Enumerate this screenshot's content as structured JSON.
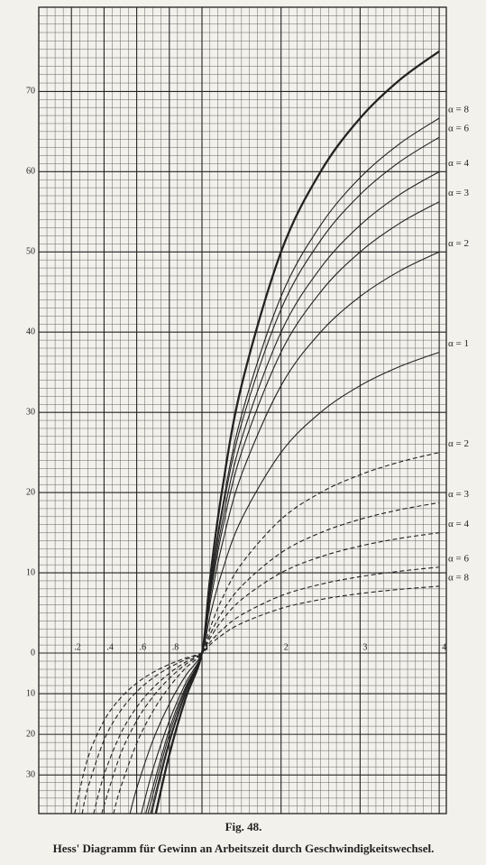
{
  "chart_data": {
    "type": "line",
    "title": "Fig. 48.",
    "subtitle": "Hess' Diagramm für Gewinn an Arbeitszeit durch Geschwindigkeitswechsel.",
    "xlim": [
      0,
      4.09
    ],
    "xticks": [
      {
        "value": 0.2,
        "label": ".2"
      },
      {
        "value": 0.4,
        "label": ".4"
      },
      {
        "value": 0.6,
        "label": ".6"
      },
      {
        "value": 0.8,
        "label": ".8"
      },
      1,
      2,
      3,
      4
    ],
    "ylim": [
      -39.5,
      80.5
    ],
    "yticks": [
      70,
      60,
      50,
      40,
      30,
      20,
      10,
      0,
      {
        "value": -10,
        "label": "10"
      },
      {
        "value": -20,
        "label": "20"
      },
      {
        "value": -30,
        "label": "30"
      }
    ],
    "grid": true,
    "color": "#222222",
    "series": [
      {
        "heavy": true,
        "x": [
          0.717,
          0.8,
          0.9,
          1,
          1.1,
          1.25,
          1.5,
          2,
          2.5,
          3,
          3.5,
          4
        ],
        "values": [
          -39.5,
          -25,
          -11.11,
          0,
          9.09,
          20,
          33.33,
          50,
          60,
          66.67,
          71.43,
          75
        ]
      },
      {
        "name": "α = 8",
        "x": [
          0.692,
          0.8,
          0.9,
          1,
          1.1,
          1.25,
          1.5,
          2,
          2.5,
          3,
          3.5,
          4
        ],
        "values": [
          -39.5,
          -22.22,
          -9.88,
          0,
          8.08,
          17.78,
          29.63,
          44.44,
          53.33,
          59.26,
          63.49,
          66.67
        ]
      },
      {
        "name": "α = 6",
        "x": [
          0.684,
          0.8,
          0.9,
          1,
          1.1,
          1.25,
          1.5,
          2,
          2.5,
          3,
          3.5,
          4
        ],
        "values": [
          -39.5,
          -21.43,
          -9.52,
          0,
          7.79,
          17.14,
          28.57,
          42.86,
          51.43,
          57.14,
          61.22,
          64.29
        ]
      },
      {
        "name": "α = 4",
        "x": [
          0.669,
          0.8,
          0.9,
          1,
          1.1,
          1.25,
          1.5,
          2,
          2.5,
          3,
          3.5,
          4
        ],
        "values": [
          -39.5,
          -20,
          -8.89,
          0,
          7.27,
          16,
          26.67,
          40,
          48,
          53.33,
          57.14,
          60
        ]
      },
      {
        "name": "α = 3",
        "x": [
          0.655,
          0.8,
          0.9,
          1,
          1.1,
          1.25,
          1.5,
          2,
          2.5,
          3,
          3.5,
          4
        ],
        "values": [
          -39.5,
          -18.75,
          -8.33,
          0,
          6.82,
          15,
          25,
          37.5,
          45,
          50,
          53.57,
          56.25
        ]
      },
      {
        "name": "α = 2",
        "x": [
          0.628,
          0.7,
          0.8,
          0.9,
          1,
          1.1,
          1.25,
          1.5,
          2,
          2.5,
          3,
          3.5,
          4
        ],
        "values": [
          -39.5,
          -28.57,
          -16.67,
          -7.41,
          0,
          6.06,
          13.33,
          22.22,
          33.33,
          40,
          44.44,
          47.62,
          50
        ]
      },
      {
        "name": "α = 1",
        "x": [
          0.559,
          0.6,
          0.7,
          0.8,
          0.9,
          1,
          1.1,
          1.25,
          1.5,
          2,
          2.5,
          3,
          3.5,
          4
        ],
        "values": [
          -39.5,
          -33.33,
          -21.43,
          -12.5,
          -5.56,
          0,
          4.55,
          10,
          16.67,
          25,
          30,
          33.33,
          35.71,
          37.5
        ]
      },
      {
        "name": "α = 2",
        "dash": true,
        "x": [
          0.458,
          0.5,
          0.6,
          0.7,
          0.8,
          0.9,
          1,
          1.1,
          1.25,
          1.5,
          2,
          2.5,
          3,
          3.5,
          4
        ],
        "values": [
          -39.5,
          -33.33,
          -22.22,
          -14.29,
          -8.33,
          -3.7,
          0,
          3.03,
          6.67,
          11.11,
          16.67,
          20,
          22.22,
          23.81,
          25
        ]
      },
      {
        "name": "α = 3",
        "dash": true,
        "x": [
          0.388,
          0.4,
          0.5,
          0.6,
          0.7,
          0.8,
          0.9,
          1,
          1.1,
          1.25,
          1.5,
          2,
          2.5,
          3,
          3.5,
          4
        ],
        "values": [
          -39.5,
          -37.5,
          -25,
          -16.67,
          -10.71,
          -6.25,
          -2.78,
          0,
          2.27,
          5,
          8.33,
          12.5,
          15,
          16.67,
          17.86,
          18.75
        ]
      },
      {
        "name": "α = 4",
        "dash": true,
        "x": [
          0.336,
          0.4,
          0.5,
          0.6,
          0.7,
          0.8,
          0.9,
          1,
          1.1,
          1.25,
          1.5,
          2,
          2.5,
          3,
          3.5,
          4
        ],
        "values": [
          -39.5,
          -30,
          -20,
          -13.33,
          -8.57,
          -5,
          -2.22,
          0,
          1.82,
          4,
          6.67,
          10,
          12,
          13.33,
          14.29,
          15
        ]
      },
      {
        "name": "α = 6",
        "dash": true,
        "x": [
          0.266,
          0.3,
          0.4,
          0.5,
          0.6,
          0.7,
          0.8,
          0.9,
          1,
          1.1,
          1.25,
          1.5,
          2,
          2.5,
          3,
          3.5,
          4
        ],
        "values": [
          -39.5,
          -33.33,
          -21.43,
          -14.29,
          -9.52,
          -6.12,
          -3.57,
          -1.59,
          0,
          1.3,
          2.86,
          4.76,
          7.14,
          8.57,
          9.52,
          10.2,
          10.71
        ]
      },
      {
        "name": "α = 8",
        "dash": true,
        "x": [
          0.22,
          0.3,
          0.4,
          0.5,
          0.6,
          0.7,
          0.8,
          0.9,
          1,
          1.1,
          1.25,
          1.5,
          2,
          2.5,
          3,
          3.5,
          4
        ],
        "values": [
          -39.5,
          -25.93,
          -16.67,
          -11.11,
          -7.41,
          -4.76,
          -2.78,
          -1.23,
          0,
          1.01,
          2.22,
          3.7,
          5.56,
          6.67,
          7.41,
          7.94,
          8.33
        ]
      }
    ]
  }
}
